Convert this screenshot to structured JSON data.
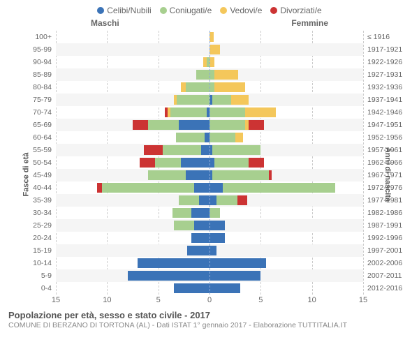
{
  "legend": [
    {
      "label": "Celibi/Nubili",
      "color": "#3b73b7"
    },
    {
      "label": "Coniugati/e",
      "color": "#a7cf8f"
    },
    {
      "label": "Vedovi/e",
      "color": "#f4c75b"
    },
    {
      "label": "Divorziati/e",
      "color": "#cc3333"
    }
  ],
  "titles": {
    "male": "Maschi",
    "female": "Femmine"
  },
  "axis": {
    "left_label": "Fasce di età",
    "right_label": "Anni di nascita",
    "max": 15,
    "ticks": [
      15,
      10,
      5,
      0,
      5,
      10,
      15
    ]
  },
  "colors": {
    "celibi": "#3b73b7",
    "coniugati": "#a7cf8f",
    "vedovi": "#f4c75b",
    "divorziati": "#cc3333",
    "alt_row": "#f5f5f5",
    "grid": "#cccccc"
  },
  "rows": [
    {
      "age": "100+",
      "birth": "≤ 1916",
      "m": {
        "c": 0,
        "k": 0,
        "v": 0,
        "d": 0
      },
      "f": {
        "c": 0,
        "k": 0,
        "v": 0.4,
        "d": 0
      }
    },
    {
      "age": "95-99",
      "birth": "1917-1921",
      "m": {
        "c": 0,
        "k": 0,
        "v": 0,
        "d": 0
      },
      "f": {
        "c": 0,
        "k": 0,
        "v": 1,
        "d": 0
      }
    },
    {
      "age": "90-94",
      "birth": "1922-1926",
      "m": {
        "c": 0,
        "k": 0.3,
        "v": 0.3,
        "d": 0
      },
      "f": {
        "c": 0,
        "k": 0,
        "v": 0.5,
        "d": 0
      }
    },
    {
      "age": "85-89",
      "birth": "1927-1931",
      "m": {
        "c": 0,
        "k": 1.3,
        "v": 0,
        "d": 0
      },
      "f": {
        "c": 0,
        "k": 0.5,
        "v": 2.3,
        "d": 0
      }
    },
    {
      "age": "80-84",
      "birth": "1932-1936",
      "m": {
        "c": 0,
        "k": 2.3,
        "v": 0.5,
        "d": 0
      },
      "f": {
        "c": 0,
        "k": 0.5,
        "v": 3,
        "d": 0
      }
    },
    {
      "age": "75-79",
      "birth": "1937-1941",
      "m": {
        "c": 0,
        "k": 3.2,
        "v": 0.3,
        "d": 0
      },
      "f": {
        "c": 0.3,
        "k": 1.8,
        "v": 1.7,
        "d": 0
      }
    },
    {
      "age": "70-74",
      "birth": "1942-1946",
      "m": {
        "c": 0.3,
        "k": 3.5,
        "v": 0.3,
        "d": 0.3
      },
      "f": {
        "c": 0,
        "k": 3.5,
        "v": 3,
        "d": 0
      }
    },
    {
      "age": "65-69",
      "birth": "1947-1951",
      "m": {
        "c": 3,
        "k": 3,
        "v": 0,
        "d": 1.5
      },
      "f": {
        "c": 0,
        "k": 3.5,
        "v": 0.3,
        "d": 1.5
      }
    },
    {
      "age": "60-64",
      "birth": "1952-1956",
      "m": {
        "c": 0.5,
        "k": 2.8,
        "v": 0,
        "d": 0
      },
      "f": {
        "c": 0,
        "k": 2.5,
        "v": 0.8,
        "d": 0
      }
    },
    {
      "age": "55-59",
      "birth": "1957-1961",
      "m": {
        "c": 0.8,
        "k": 3.8,
        "v": 0,
        "d": 1.8
      },
      "f": {
        "c": 0.3,
        "k": 4.7,
        "v": 0,
        "d": 0
      }
    },
    {
      "age": "50-54",
      "birth": "1962-1966",
      "m": {
        "c": 2.8,
        "k": 2.5,
        "v": 0,
        "d": 1.5
      },
      "f": {
        "c": 0.5,
        "k": 3.3,
        "v": 0,
        "d": 1.5
      }
    },
    {
      "age": "45-49",
      "birth": "1967-1971",
      "m": {
        "c": 2.3,
        "k": 3.7,
        "v": 0,
        "d": 0
      },
      "f": {
        "c": 0.3,
        "k": 5.5,
        "v": 0,
        "d": 0.3
      }
    },
    {
      "age": "40-44",
      "birth": "1972-1976",
      "m": {
        "c": 1.5,
        "k": 9,
        "v": 0,
        "d": 0.5
      },
      "f": {
        "c": 1.3,
        "k": 11,
        "v": 0,
        "d": 0
      }
    },
    {
      "age": "35-39",
      "birth": "1977-1981",
      "m": {
        "c": 1,
        "k": 2,
        "v": 0,
        "d": 0
      },
      "f": {
        "c": 0.7,
        "k": 2,
        "v": 0,
        "d": 1
      }
    },
    {
      "age": "30-34",
      "birth": "1982-1986",
      "m": {
        "c": 1.8,
        "k": 1.8,
        "v": 0,
        "d": 0
      },
      "f": {
        "c": 0,
        "k": 1,
        "v": 0,
        "d": 0
      }
    },
    {
      "age": "25-29",
      "birth": "1987-1991",
      "m": {
        "c": 1.5,
        "k": 2,
        "v": 0,
        "d": 0
      },
      "f": {
        "c": 1.5,
        "k": 0,
        "v": 0,
        "d": 0
      }
    },
    {
      "age": "20-24",
      "birth": "1992-1996",
      "m": {
        "c": 1.8,
        "k": 0,
        "v": 0,
        "d": 0
      },
      "f": {
        "c": 1.5,
        "k": 0,
        "v": 0,
        "d": 0
      }
    },
    {
      "age": "15-19",
      "birth": "1997-2001",
      "m": {
        "c": 2.2,
        "k": 0,
        "v": 0,
        "d": 0
      },
      "f": {
        "c": 0.7,
        "k": 0,
        "v": 0,
        "d": 0
      }
    },
    {
      "age": "10-14",
      "birth": "2002-2006",
      "m": {
        "c": 7,
        "k": 0,
        "v": 0,
        "d": 0
      },
      "f": {
        "c": 5.5,
        "k": 0,
        "v": 0,
        "d": 0
      }
    },
    {
      "age": "5-9",
      "birth": "2007-2011",
      "m": {
        "c": 8,
        "k": 0,
        "v": 0,
        "d": 0
      },
      "f": {
        "c": 5,
        "k": 0,
        "v": 0,
        "d": 0
      }
    },
    {
      "age": "0-4",
      "birth": "2012-2016",
      "m": {
        "c": 3.5,
        "k": 0,
        "v": 0,
        "d": 0
      },
      "f": {
        "c": 3,
        "k": 0,
        "v": 0,
        "d": 0
      }
    }
  ],
  "footer": {
    "title": "Popolazione per età, sesso e stato civile - 2017",
    "sub": "COMUNE DI BERZANO DI TORTONA (AL) - Dati ISTAT 1° gennaio 2017 - Elaborazione TUTTITALIA.IT"
  }
}
